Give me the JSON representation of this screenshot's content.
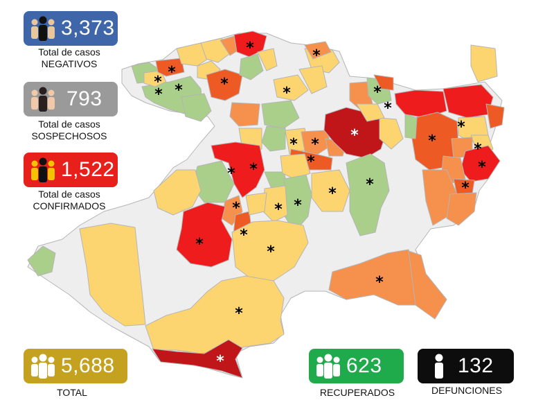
{
  "colors": {
    "negativos": "#3e66a8",
    "sospechosos": "#9a9a9a",
    "confirmados": "#e8201c",
    "total": "#c4a11e",
    "recuperados": "#1faa4b",
    "defunciones": "#0d0d0d",
    "map_gray": "#eeeeee",
    "map_green": "#a9cf8a",
    "map_yellow": "#fcd571",
    "map_orange_light": "#f6904d",
    "map_orange": "#ee5a24",
    "map_red": "#ee1c1c",
    "map_darkred": "#c0161a"
  },
  "negativos": {
    "value": "3,373",
    "label_line1": "Total de casos",
    "label_line2": "NEGATIVOS",
    "icon": "people-icon"
  },
  "sospechosos": {
    "value": "793",
    "label_line1": "Total de casos",
    "label_line2": "SOSPECHOSOS",
    "icon": "people-icon"
  },
  "confirmados": {
    "value": "1,522",
    "label_line1": "Total de casos",
    "label_line2": "CONFIRMADOS",
    "icon": "people-icon"
  },
  "total": {
    "value": "5,688",
    "label": "TOTAL",
    "icon": "people-icon"
  },
  "recuperados": {
    "value": "623",
    "label": "RECUPERADOS",
    "icon": "people-icon"
  },
  "defunciones": {
    "value": "132",
    "label": "DEFUNCIONES",
    "icon": "person-icon"
  },
  "map": {
    "marker": "*"
  }
}
